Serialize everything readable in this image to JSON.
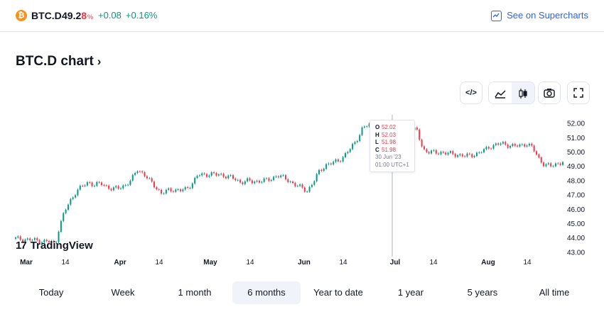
{
  "header": {
    "logo_glyph": "₿",
    "symbol": "BTC.D",
    "price_main": "49.2",
    "price_last": "8",
    "price_unit": "%",
    "change_abs": "+0.08",
    "change_pct": "+0.16%",
    "supercharts_label": "See on Supercharts"
  },
  "chart_title": "BTC.D chart",
  "chart_title_chevron": "›",
  "toolbar": {
    "embed_icon": "</>",
    "area_icon": "area-chart-icon",
    "candles_icon": "candles-icon",
    "camera_icon": "camera-icon",
    "fullscreen_icon": "fullscreen-icon"
  },
  "branding": {
    "mark": "17",
    "name": "TradingView"
  },
  "tooltip": {
    "o_label": "O",
    "o_value": "52.02",
    "h_label": "H",
    "h_value": "52.03",
    "l_label": "L",
    "l_value": "51.98",
    "c_label": "C",
    "c_value": "51.98",
    "date": "30 Jun '23",
    "time": "01:00 UTC+1"
  },
  "ranges": [
    {
      "label": "Today",
      "active": false
    },
    {
      "label": "Week",
      "active": false
    },
    {
      "label": "1 month",
      "active": false
    },
    {
      "label": "6 months",
      "active": true
    },
    {
      "label": "Year to date",
      "active": false
    },
    {
      "label": "1 year",
      "active": false
    },
    {
      "label": "5 years",
      "active": false
    },
    {
      "label": "All time",
      "active": false
    }
  ],
  "chart_data": {
    "type": "line",
    "up_color": "#089981",
    "down_color": "#f23645",
    "ylim": [
      42.7,
      52.6
    ],
    "y_ticks": [
      "52.00",
      "51.00",
      "50.00",
      "49.00",
      "48.00",
      "47.00",
      "46.00",
      "45.00",
      "44.00",
      "43.00"
    ],
    "x_ticks": [
      "Mar",
      "14",
      "Apr",
      "14",
      "May",
      "14",
      "Jun",
      "14",
      "Jul",
      "14",
      "Aug",
      "14"
    ],
    "series": [
      {
        "x": [
          0,
          3,
          6,
          8,
          10,
          12,
          13,
          14,
          16,
          18,
          20,
          22,
          24,
          26,
          28,
          30,
          32,
          34,
          36,
          38,
          40,
          42,
          44,
          46,
          48,
          50,
          52,
          54,
          56,
          58,
          60,
          62,
          64,
          66,
          68,
          70,
          72,
          74,
          76,
          78,
          80,
          82,
          84,
          86,
          88,
          90,
          92,
          94,
          96,
          98,
          100,
          102,
          104,
          106,
          108,
          110,
          112,
          114,
          116,
          118,
          120,
          122,
          124,
          126,
          128,
          130,
          132,
          134,
          136,
          138,
          140,
          142,
          144,
          146,
          148,
          150,
          152,
          154,
          156,
          158,
          160,
          162,
          164,
          166,
          168,
          170,
          172,
          174,
          176,
          178,
          180
        ],
        "values": [
          43.95,
          43.9,
          43.85,
          43.8,
          43.75,
          43.7,
          43.5,
          44.5,
          45.8,
          46.6,
          47.3,
          47.6,
          47.9,
          47.7,
          47.8,
          47.6,
          47.4,
          47.5,
          47.7,
          48.0,
          48.8,
          48.5,
          48.0,
          47.6,
          47.1,
          47.3,
          47.4,
          47.3,
          47.4,
          47.8,
          48.4,
          48.4,
          48.5,
          48.4,
          48.4,
          48.3,
          48.1,
          47.9,
          48.0,
          47.9,
          48.0,
          48.0,
          48.1,
          48.4,
          48.2,
          48.0,
          47.7,
          47.5,
          47.3,
          47.9,
          48.7,
          49.1,
          49.2,
          49.4,
          49.7,
          50.2,
          50.8,
          51.6,
          51.9,
          52.0,
          52.05,
          51.95,
          51.8,
          51.75,
          51.7,
          51.6,
          51.5,
          50.2,
          50.0,
          49.95,
          50.0,
          49.9,
          49.85,
          49.8,
          49.7,
          49.8,
          49.9,
          50.1,
          50.4,
          50.5,
          50.6,
          50.5,
          50.4,
          50.45,
          50.6,
          50.3,
          49.6,
          49.1,
          49.0,
          49.2,
          49.3
        ]
      }
    ]
  }
}
